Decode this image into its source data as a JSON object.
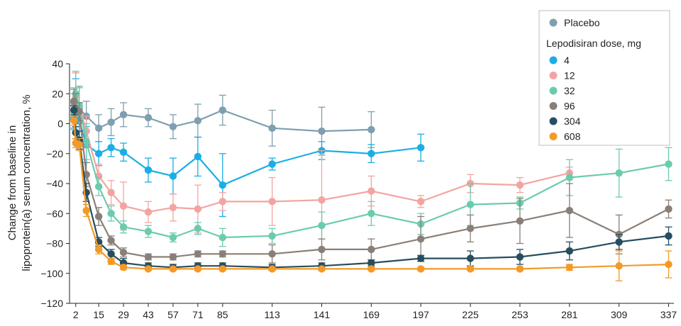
{
  "chart_data": {
    "type": "line",
    "title": "",
    "xlabel": "",
    "ylabel_line1": "Change from baseline in",
    "ylabel_line2": "lipoprotein(a) serum concentration, %",
    "x_ticks": [
      2,
      15,
      29,
      43,
      57,
      71,
      85,
      113,
      141,
      169,
      197,
      225,
      253,
      281,
      309,
      337
    ],
    "y_ticks": [
      40,
      20,
      0,
      -20,
      -40,
      -60,
      -80,
      -100,
      -120
    ],
    "ylim": [
      -120,
      40
    ],
    "grid": false,
    "legend": {
      "placement": "top-right",
      "heading": "Lepodisiran dose, mg"
    },
    "series": [
      {
        "name": "Placebo",
        "color": "#7f9fb0",
        "in_dose_group": false,
        "x": [
          1,
          2,
          4,
          8,
          15,
          22,
          29,
          43,
          57,
          71,
          85,
          113,
          141,
          169
        ],
        "y": [
          4,
          12,
          10,
          5,
          -3,
          1,
          6,
          4,
          -2,
          2,
          9,
          -3,
          -5,
          -4
        ],
        "err": [
          8,
          22,
          15,
          10,
          9,
          9,
          8,
          6,
          8,
          11,
          10,
          12,
          16,
          12
        ]
      },
      {
        "name": "4",
        "color": "#1aaee5",
        "in_dose_group": true,
        "x": [
          1,
          2,
          4,
          8,
          15,
          22,
          29,
          43,
          57,
          71,
          85,
          113,
          141,
          169,
          197
        ],
        "y": [
          3,
          10,
          2,
          -14,
          -20,
          -16,
          -19,
          -31,
          -35,
          -22,
          -41,
          -27,
          -18,
          -20,
          -16
        ],
        "err": [
          6,
          20,
          12,
          12,
          8,
          6,
          6,
          8,
          12,
          13,
          21,
          4,
          6,
          6,
          9
        ]
      },
      {
        "name": "12",
        "color": "#f2a5a0",
        "in_dose_group": true,
        "x": [
          1,
          2,
          4,
          8,
          15,
          22,
          29,
          43,
          57,
          71,
          85,
          113,
          141,
          169,
          197,
          225,
          253,
          281
        ],
        "y": [
          12,
          18,
          12,
          -5,
          -35,
          -46,
          -55,
          -59,
          -56,
          -57,
          -52,
          -52,
          -51,
          -45,
          -52,
          -40,
          -41,
          -33
        ],
        "err": [
          8,
          16,
          12,
          10,
          8,
          8,
          16,
          7,
          9,
          16,
          6,
          16,
          33,
          10,
          4,
          6,
          5,
          4
        ]
      },
      {
        "name": "32",
        "color": "#6ccbae",
        "in_dose_group": true,
        "x": [
          1,
          2,
          4,
          8,
          15,
          22,
          29,
          43,
          57,
          71,
          85,
          113,
          141,
          169,
          197,
          225,
          253,
          281,
          309,
          337
        ],
        "y": [
          14,
          20,
          12,
          -12,
          -42,
          -60,
          -69,
          -72,
          -76,
          -70,
          -76,
          -75,
          -68,
          -60,
          -67,
          -54,
          -53,
          -36,
          -33,
          -27
        ],
        "err": [
          10,
          15,
          12,
          12,
          6,
          5,
          4,
          4,
          3,
          4,
          6,
          5,
          9,
          8,
          7,
          14,
          4,
          12,
          16,
          11
        ]
      },
      {
        "name": "96",
        "color": "#8a7f77",
        "in_dose_group": true,
        "x": [
          1,
          2,
          4,
          8,
          15,
          22,
          29,
          43,
          57,
          71,
          85,
          113,
          141,
          169,
          197,
          225,
          253,
          281,
          309,
          337
        ],
        "y": [
          15,
          10,
          8,
          -34,
          -62,
          -78,
          -86,
          -89,
          -89,
          -87,
          -87,
          -87,
          -84,
          -84,
          -77,
          -70,
          -65,
          -58,
          -74,
          -57
        ],
        "err": [
          8,
          10,
          6,
          8,
          6,
          3,
          3,
          2,
          2,
          2,
          2,
          6,
          7,
          7,
          15,
          9,
          15,
          18,
          13,
          6
        ]
      },
      {
        "name": "304",
        "color": "#264e5f",
        "in_dose_group": true,
        "x": [
          1,
          2,
          4,
          8,
          15,
          22,
          29,
          43,
          57,
          71,
          85,
          113,
          141,
          169,
          197,
          225,
          253,
          281,
          309,
          337
        ],
        "y": [
          9,
          -6,
          -11,
          -46,
          -79,
          -87,
          -93,
          -95,
          -96,
          -95,
          -95,
          -96,
          -95,
          -93,
          -90,
          -90,
          -89,
          -85,
          -79,
          -75
        ],
        "err": [
          3,
          4,
          6,
          6,
          3,
          3,
          3,
          2,
          2,
          2,
          2,
          2,
          2,
          2,
          2,
          5,
          5,
          6,
          5,
          6
        ]
      },
      {
        "name": "608",
        "color": "#f39a26",
        "in_dose_group": true,
        "x": [
          1,
          2,
          4,
          8,
          15,
          22,
          29,
          43,
          57,
          71,
          85,
          113,
          141,
          169,
          197,
          225,
          253,
          281,
          309,
          337
        ],
        "y": [
          2,
          -13,
          -14,
          -58,
          -84,
          -92,
          -96,
          -97,
          -97,
          -97,
          -97,
          -97,
          -97,
          -97,
          -97,
          -97,
          -97,
          -96,
          -95,
          -94
        ],
        "err": [
          3,
          3,
          4,
          4,
          3,
          2,
          1.5,
          1,
          1,
          1,
          1,
          1,
          1,
          1,
          1,
          1,
          1,
          2,
          10,
          9
        ]
      }
    ]
  }
}
